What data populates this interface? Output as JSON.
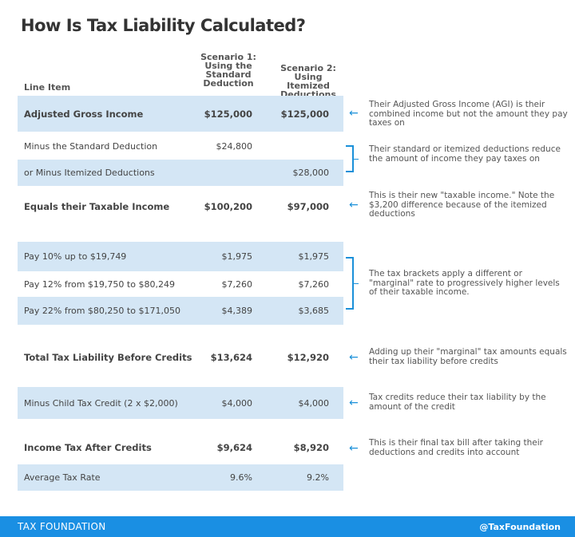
{
  "title": "How Is Tax Liability Calculated?",
  "headers": {
    "line_item": "Line Item",
    "scenario1": "Scenario 1: Using the Standard Deduction",
    "scenario2": "Scenario 2: Using Itemized Deductions"
  },
  "rows": [
    {
      "label": "Adjusted Gross Income",
      "s1": "$125,000",
      "s2": "$125,000"
    },
    {
      "label": "Minus the Standard Deduction",
      "s1": "$24,800",
      "s2": ""
    },
    {
      "label": "or Minus Itemized Deductions",
      "s1": "",
      "s2": "$28,000"
    },
    {
      "label": "Equals their Taxable Income",
      "s1": "$100,200",
      "s2": "$97,000"
    },
    {
      "label": "Pay 10% up to $19,749",
      "s1": "$1,975",
      "s2": "$1,975"
    },
    {
      "label": "Pay 12% from $19,750 to $80,249",
      "s1": "$7,260",
      "s2": "$7,260"
    },
    {
      "label": "Pay 22% from $80,250 to $171,050",
      "s1": "$4,389",
      "s2": "$3,685"
    },
    {
      "label": "Total Tax Liability Before Credits",
      "s1": "$13,624",
      "s2": "$12,920"
    },
    {
      "label": "Minus Child Tax Credit (2 x $2,000)",
      "s1": "$4,000",
      "s2": "$4,000"
    },
    {
      "label": "Income Tax After Credits",
      "s1": "$9,624",
      "s2": "$8,920"
    },
    {
      "label": "Average Tax Rate",
      "s1": "9.6%",
      "s2": "9.2%"
    }
  ],
  "notes": [
    "Their Adjusted Gross Income (AGI) is their combined income but not the amount they pay taxes on",
    "Their standard or itemized deductions reduce the amount of income they pay taxes on",
    "This is their new \"taxable income.\" Note the $3,200 difference because of the itemized deductions",
    "The tax brackets apply a different or \"marginal\" rate to progressively higher levels of their taxable income.",
    "Adding up their \"marginal\" tax amounts equals their tax liability before credits",
    "Tax credits reduce their tax liability by the amount of the credit",
    "This is their final tax bill after taking their deductions and credits into account"
  ],
  "footer": {
    "brand": "TAX FOUNDATION",
    "handle": "@TaxFoundation"
  },
  "colors": {
    "accent": "#1a8fe3",
    "row_highlight": "#d4e6f5"
  }
}
